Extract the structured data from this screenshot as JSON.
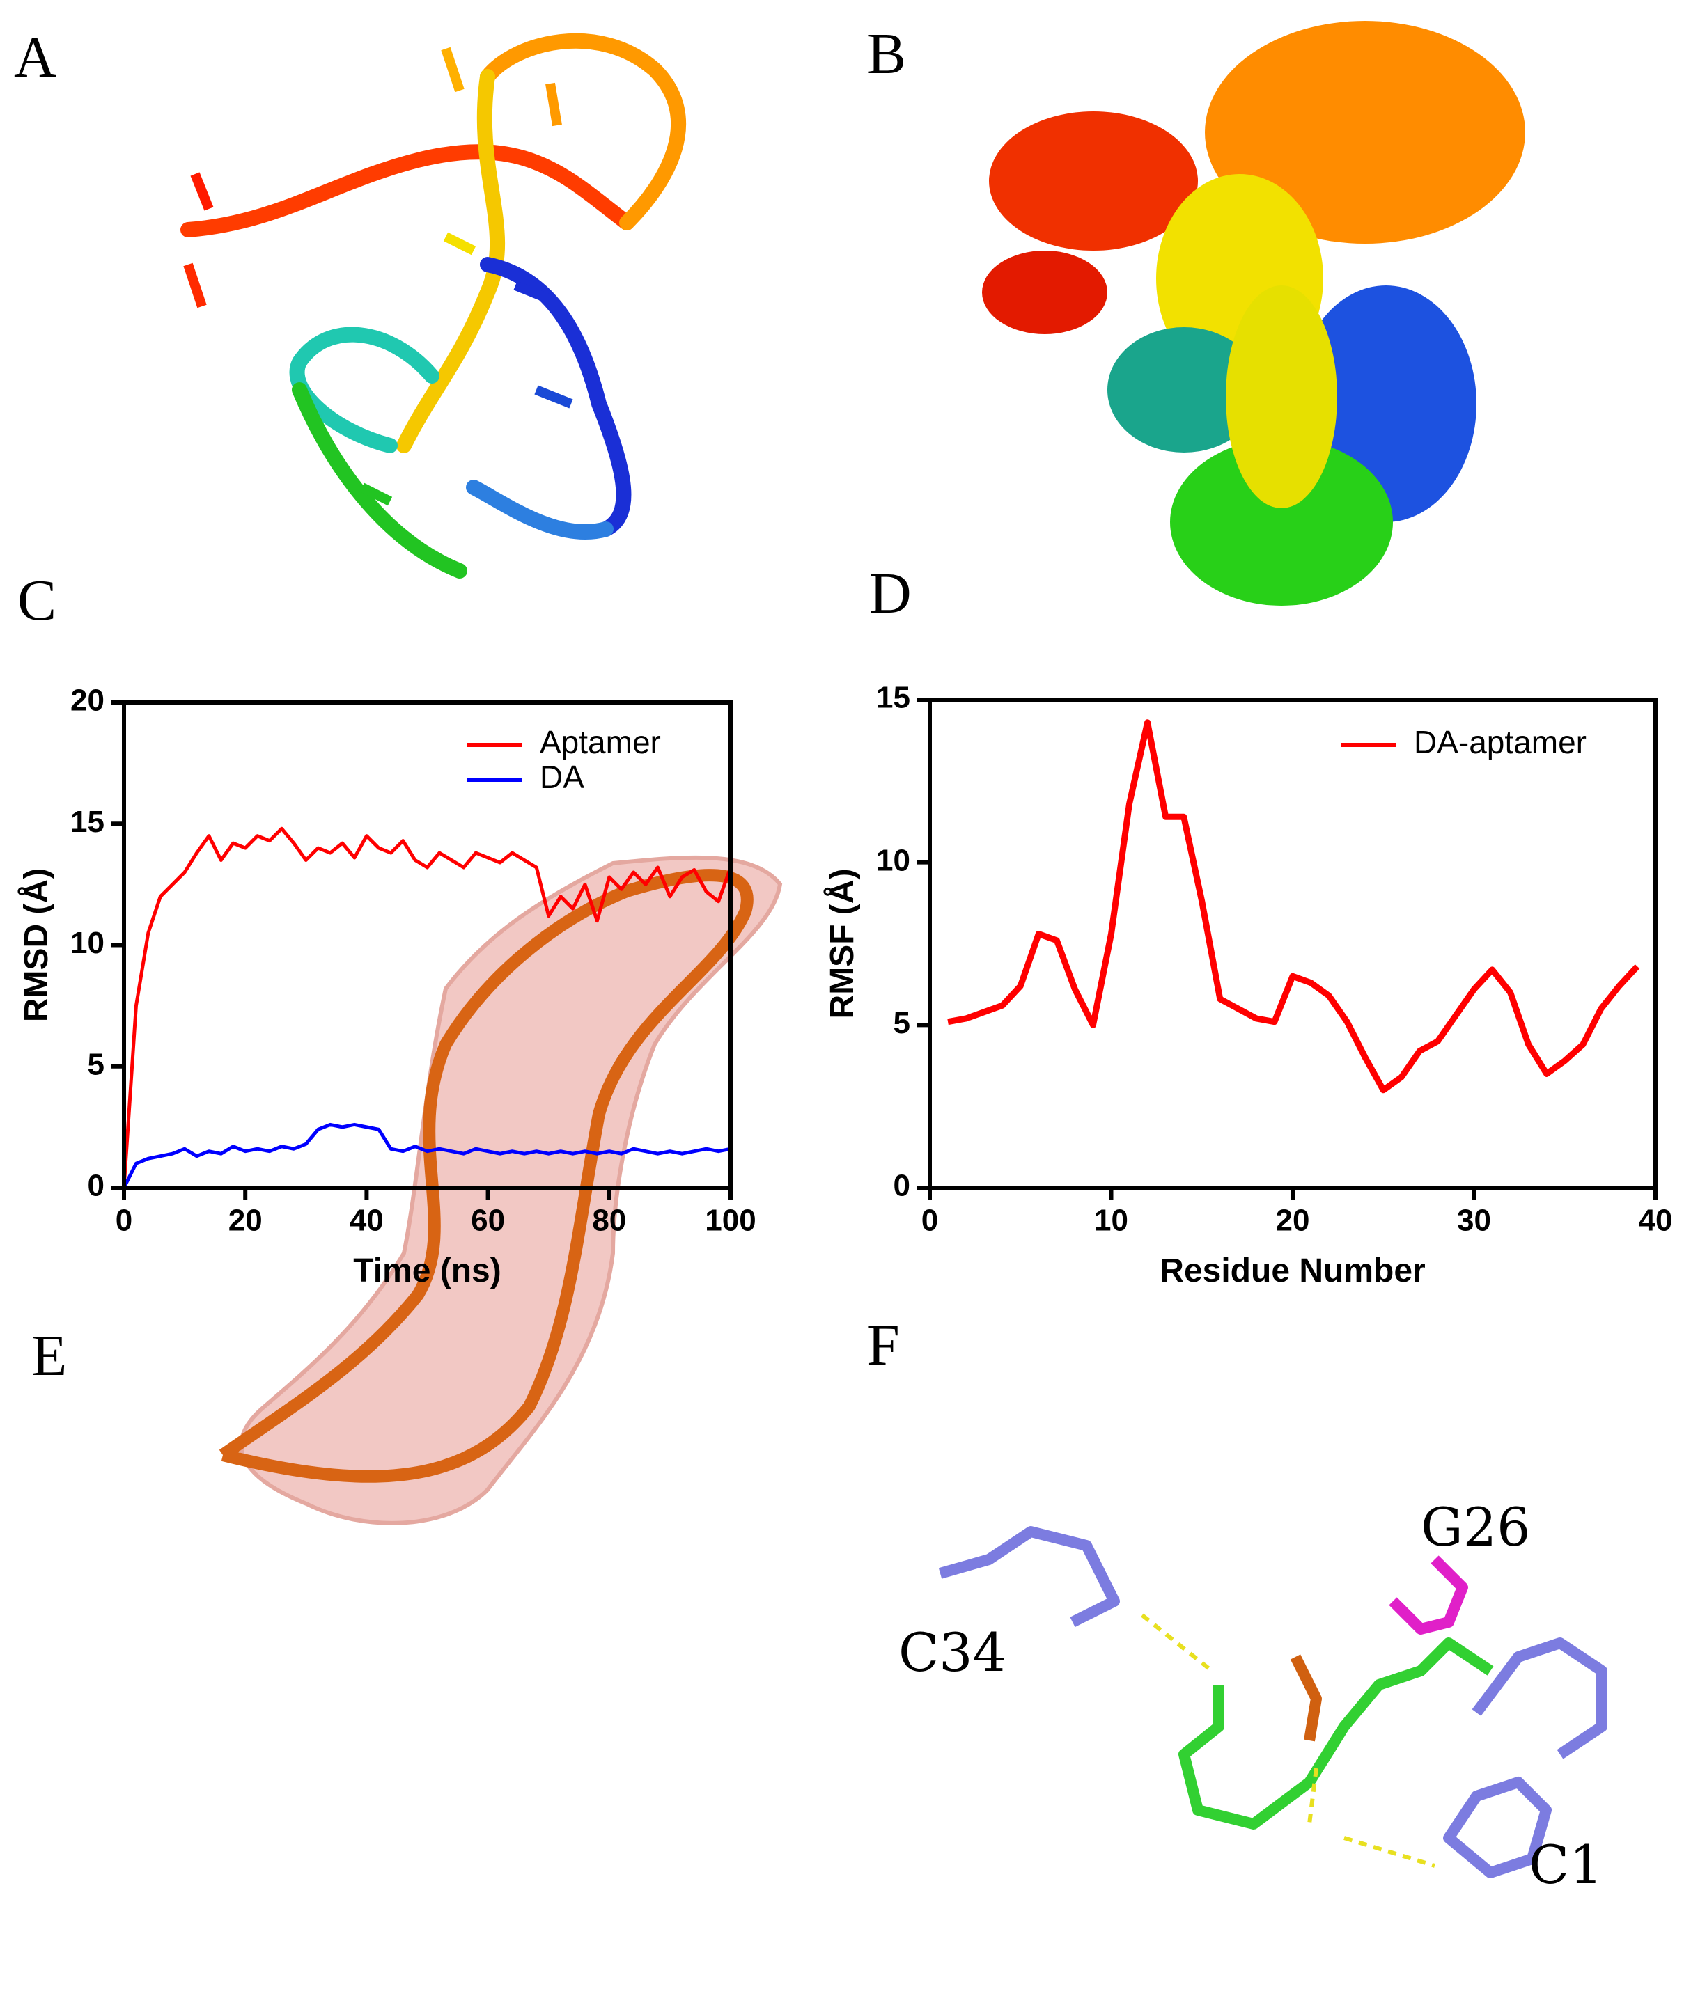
{
  "panels": [
    "A",
    "B",
    "C",
    "D",
    "E",
    "F"
  ],
  "annotations": [
    "C34",
    "G26",
    "C1"
  ],
  "chart_data": [
    {
      "type": "line",
      "xlabel": "Time (ns)",
      "ylabel": "RMSD (Å)",
      "xlim": [
        0,
        100
      ],
      "xticks": [
        0,
        20,
        40,
        60,
        80,
        100
      ],
      "ylim": [
        0,
        20
      ],
      "yticks": [
        0,
        5,
        10,
        15,
        20
      ],
      "legend": "upper right",
      "x": [
        0,
        2,
        4,
        6,
        8,
        10,
        12,
        14,
        16,
        18,
        20,
        22,
        24,
        26,
        28,
        30,
        32,
        34,
        36,
        38,
        40,
        42,
        44,
        46,
        48,
        50,
        52,
        54,
        56,
        58,
        60,
        62,
        64,
        66,
        68,
        70,
        72,
        74,
        76,
        78,
        80,
        82,
        84,
        86,
        88,
        90,
        92,
        94,
        96,
        98,
        100
      ],
      "series": [
        {
          "name": "Aptamer",
          "color": "#ff0000",
          "values": [
            0,
            7.5,
            10.5,
            12,
            12.5,
            13,
            13.8,
            14.5,
            13.5,
            14.2,
            14,
            14.5,
            14.3,
            14.8,
            14.2,
            13.5,
            14,
            13.8,
            14.2,
            13.6,
            14.5,
            14,
            13.8,
            14.3,
            13.5,
            13.2,
            13.8,
            13.5,
            13.2,
            13.8,
            13.6,
            13.4,
            13.8,
            13.5,
            13.2,
            11.2,
            12,
            11.5,
            12.5,
            11,
            12.8,
            12.3,
            13,
            12.5,
            13.2,
            12,
            12.8,
            13.1,
            12.2,
            11.8,
            13.2
          ]
        },
        {
          "name": "DA",
          "color": "#0000ff",
          "values": [
            0,
            1,
            1.2,
            1.3,
            1.4,
            1.6,
            1.3,
            1.5,
            1.4,
            1.7,
            1.5,
            1.6,
            1.5,
            1.7,
            1.6,
            1.8,
            2.4,
            2.6,
            2.5,
            2.6,
            2.5,
            2.4,
            1.6,
            1.5,
            1.7,
            1.5,
            1.6,
            1.5,
            1.4,
            1.6,
            1.5,
            1.4,
            1.5,
            1.4,
            1.5,
            1.4,
            1.5,
            1.4,
            1.5,
            1.4,
            1.5,
            1.4,
            1.6,
            1.5,
            1.4,
            1.5,
            1.4,
            1.5,
            1.6,
            1.5,
            1.6
          ]
        }
      ]
    },
    {
      "type": "line",
      "xlabel": "Residue Number",
      "ylabel": "RMSF (Å)",
      "xlim": [
        0,
        40
      ],
      "xticks": [
        0,
        10,
        20,
        30,
        40
      ],
      "ylim": [
        0,
        15
      ],
      "yticks": [
        0,
        5,
        10,
        15
      ],
      "legend": "upper right",
      "x": [
        1,
        2,
        3,
        4,
        5,
        6,
        7,
        8,
        9,
        10,
        11,
        12,
        13,
        14,
        15,
        16,
        17,
        18,
        19,
        20,
        21,
        22,
        23,
        24,
        25,
        26,
        27,
        28,
        29,
        30,
        31,
        32,
        33,
        34,
        35,
        36,
        37,
        38,
        39
      ],
      "series": [
        {
          "name": "DA-aptamer",
          "color": "#ff0000",
          "values": [
            5.1,
            5.2,
            5.4,
            5.6,
            6.2,
            7.8,
            7.6,
            6.1,
            5.0,
            7.8,
            11.8,
            14.3,
            11.4,
            11.4,
            8.8,
            5.8,
            5.5,
            5.2,
            5.1,
            6.5,
            6.3,
            5.9,
            5.1,
            4.0,
            3.0,
            3.4,
            4.2,
            4.5,
            5.3,
            6.1,
            6.7,
            6.0,
            4.4,
            3.5,
            3.9,
            4.4,
            5.5,
            6.2,
            6.8
          ]
        }
      ]
    }
  ]
}
